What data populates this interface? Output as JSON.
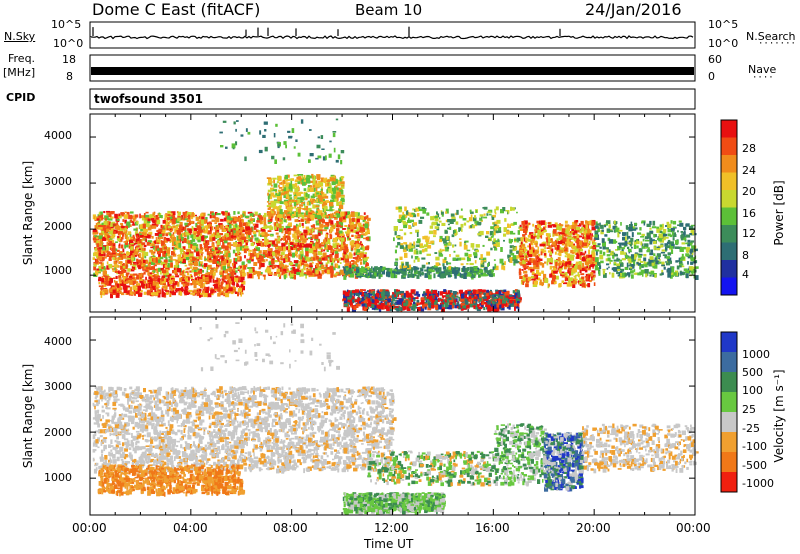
{
  "header": {
    "title": "Dome C East (fitACF)",
    "beam": "Beam 10",
    "date": "24/Jan/2016"
  },
  "meta_panels": {
    "nsky_label": "N.Sky",
    "nsky_ticks": [
      "10^5",
      "10^0"
    ],
    "nsearch_label": "N.Search",
    "nsearch_ticks": [
      "10^5",
      "10^0"
    ],
    "freq_label_1": "Freq.",
    "freq_label_2": "[MHz]",
    "freq_ticks": [
      "18",
      "8"
    ],
    "nave_label": "Nave",
    "nave_ticks": [
      "60",
      "0"
    ],
    "cpid_label": "CPID",
    "cpid_value": "twofsound 3501"
  },
  "chart_data": [
    {
      "type": "heatmap",
      "name": "power",
      "ylabel": "Slant Range [km]",
      "yticks": [
        "1000",
        "2000",
        "3000",
        "4000"
      ],
      "ylim": [
        200,
        4500
      ],
      "xlim": [
        0,
        24
      ],
      "xticks": [
        "00:00",
        "04:00",
        "08:00",
        "12:00",
        "16:00",
        "20:00",
        "00:00"
      ],
      "colorbar": {
        "label": "Power [dB]",
        "ticks": [
          "4",
          "8",
          "12",
          "16",
          "20",
          "24",
          "28"
        ],
        "colors": [
          "#1414f0",
          "#2030a0",
          "#2e6e74",
          "#3c8c5a",
          "#5cc038",
          "#c8d830",
          "#f0c028",
          "#f08c1c",
          "#f04c14",
          "#e81010"
        ]
      },
      "dominant_features": [
        {
          "time_range": "00:00-11:00",
          "range_km": "1000-2500",
          "level": "high"
        },
        {
          "time_range": "07:00-10:00",
          "range_km": "2500-3200",
          "level": "medium"
        },
        {
          "time_range": "10:00-17:00",
          "range_km": "300-700",
          "level": "high"
        },
        {
          "time_range": "17:00-20:00",
          "range_km": "800-2200",
          "level": "high"
        }
      ]
    },
    {
      "type": "heatmap",
      "name": "velocity",
      "ylabel": "Slant Range [km]",
      "yticks": [
        "1000",
        "2000",
        "3000",
        "4000"
      ],
      "ylim": [
        200,
        4500
      ],
      "xlim": [
        0,
        24
      ],
      "xlabel": "Time UT",
      "xticks": [
        "00:00",
        "04:00",
        "08:00",
        "12:00",
        "16:00",
        "20:00",
        "00:00"
      ],
      "colorbar": {
        "label": "Velocity [m s⁻¹]",
        "ticks": [
          "1000",
          "500",
          "100",
          "25",
          "-25",
          "-100",
          "-500",
          "-1000"
        ],
        "colors": [
          "#2038c8",
          "#3c6ca0",
          "#3c8c50",
          "#68c840",
          "#c8c8c8",
          "#f0a030",
          "#f07818",
          "#f02010"
        ]
      },
      "dominant_features": [
        {
          "time_range": "00:00-06:00",
          "range_km": "700-1300",
          "level": "-100 to -500"
        },
        {
          "time_range": "00:00-12:00",
          "range_km": "1200-3000",
          "level": "-25 to 25"
        },
        {
          "time_range": "10:00-14:00",
          "range_km": "300-700",
          "level": "100"
        },
        {
          "time_range": "18:00-19:30",
          "range_km": "800-2000",
          "level": "500 to 1000"
        }
      ]
    }
  ],
  "colors": {
    "axis": "#000000",
    "background": "#ffffff"
  }
}
